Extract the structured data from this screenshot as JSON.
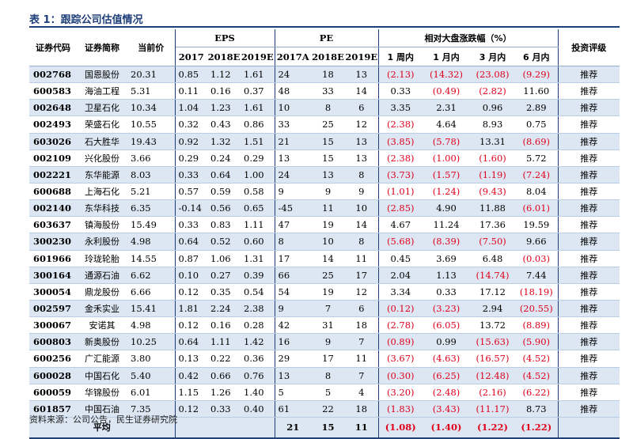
{
  "caption": "表 1：跟踪公司估值情况",
  "headers": {
    "code": "证券代码",
    "name": "证券简称",
    "price": "当前价",
    "eps_group": "EPS",
    "pe_group": "PE",
    "perf_group": "相对大盘涨跌幅（%）",
    "rating": "投资评级",
    "eps_years": [
      "2017",
      "2018E",
      "2019E"
    ],
    "pe_years": [
      "2017A",
      "2018E",
      "2019E"
    ],
    "perf_periods": [
      "1 周内",
      "1 月内",
      "3 月内",
      "6 月内"
    ]
  },
  "rows": [
    {
      "code": "002768",
      "name": "国恩股份",
      "price": "20.31",
      "eps": [
        "0.85",
        "1.12",
        "1.61"
      ],
      "pe": [
        "24",
        "18",
        "13"
      ],
      "perf": [
        "(2.13)",
        "(14.32)",
        "(23.08)",
        "(9.29)"
      ],
      "rating": "推荐"
    },
    {
      "code": "600583",
      "name": "海油工程",
      "price": "5.31",
      "eps": [
        "0.11",
        "0.16",
        "0.37"
      ],
      "pe": [
        "48",
        "33",
        "14"
      ],
      "perf": [
        "0.33",
        "(0.49)",
        "(2.82)",
        "11.60"
      ],
      "rating": "推荐"
    },
    {
      "code": "002648",
      "name": "卫星石化",
      "price": "10.34",
      "eps": [
        "1.04",
        "1.23",
        "1.61"
      ],
      "pe": [
        "10",
        "8",
        "6"
      ],
      "perf": [
        "3.35",
        "2.31",
        "0.96",
        "2.89"
      ],
      "rating": "推荐"
    },
    {
      "code": "002493",
      "name": "荣盛石化",
      "price": "10.55",
      "eps": [
        "0.32",
        "0.43",
        "0.86"
      ],
      "pe": [
        "33",
        "25",
        "12"
      ],
      "perf": [
        "(2.38)",
        "4.64",
        "8.93",
        "0.75"
      ],
      "rating": "推荐"
    },
    {
      "code": "603026",
      "name": "石大胜华",
      "price": "19.43",
      "eps": [
        "0.92",
        "1.32",
        "1.51"
      ],
      "pe": [
        "21",
        "15",
        "13"
      ],
      "perf": [
        "(3.85)",
        "(5.78)",
        "13.31",
        "(8.69)"
      ],
      "rating": "推荐"
    },
    {
      "code": "002109",
      "name": "兴化股份",
      "price": "3.66",
      "eps": [
        "0.29",
        "0.24",
        "0.29"
      ],
      "pe": [
        "13",
        "15",
        "13"
      ],
      "perf": [
        "(2.38)",
        "(1.00)",
        "(1.60)",
        "5.72"
      ],
      "rating": "推荐"
    },
    {
      "code": "002221",
      "name": "东华能源",
      "price": "8.03",
      "eps": [
        "0.33",
        "0.64",
        "1.00"
      ],
      "pe": [
        "24",
        "13",
        "8"
      ],
      "perf": [
        "(3.73)",
        "(1.57)",
        "(1.19)",
        "(7.24)"
      ],
      "rating": "推荐"
    },
    {
      "code": "600688",
      "name": "上海石化",
      "price": "5.21",
      "eps": [
        "0.57",
        "0.59",
        "0.58"
      ],
      "pe": [
        "9",
        "9",
        "9"
      ],
      "perf": [
        "(1.01)",
        "(1.24)",
        "(9.43)",
        "8.04"
      ],
      "rating": "推荐"
    },
    {
      "code": "002140",
      "name": "东华科技",
      "price": "6.35",
      "eps": [
        "-0.14",
        "0.56",
        "0.65"
      ],
      "pe": [
        "-45",
        "11",
        "10"
      ],
      "perf": [
        "(2.85)",
        "4.90",
        "11.88",
        "(6.01)"
      ],
      "rating": "推荐"
    },
    {
      "code": "603637",
      "name": "镇海股份",
      "price": "15.49",
      "eps": [
        "0.33",
        "0.83",
        "1.11"
      ],
      "pe": [
        "47",
        "19",
        "14"
      ],
      "perf": [
        "4.67",
        "11.24",
        "17.36",
        "19.59"
      ],
      "rating": "推荐"
    },
    {
      "code": "300230",
      "name": "永利股份",
      "price": "4.98",
      "eps": [
        "0.64",
        "0.52",
        "0.60"
      ],
      "pe": [
        "8",
        "10",
        "8"
      ],
      "perf": [
        "(5.68)",
        "(8.39)",
        "(7.50)",
        "9.66"
      ],
      "rating": "推荐"
    },
    {
      "code": "601966",
      "name": "玲珑轮胎",
      "price": "14.55",
      "eps": [
        "0.87",
        "1.06",
        "1.31"
      ],
      "pe": [
        "17",
        "14",
        "11"
      ],
      "perf": [
        "0.45",
        "3.69",
        "6.48",
        "(0.03)"
      ],
      "rating": "推荐"
    },
    {
      "code": "300164",
      "name": "通源石油",
      "price": "6.62",
      "eps": [
        "0.10",
        "0.27",
        "0.39"
      ],
      "pe": [
        "66",
        "25",
        "17"
      ],
      "perf": [
        "2.04",
        "1.13",
        "(14.74)",
        "7.44"
      ],
      "rating": "推荐"
    },
    {
      "code": "300054",
      "name": "鼎龙股份",
      "price": "6.66",
      "eps": [
        "0.12",
        "0.35",
        "0.54"
      ],
      "pe": [
        "54",
        "19",
        "12"
      ],
      "perf": [
        "3.34",
        "0.33",
        "17.12",
        "(18.19)"
      ],
      "rating": "推荐"
    },
    {
      "code": "002597",
      "name": "金禾实业",
      "price": "15.41",
      "eps": [
        "1.81",
        "2.24",
        "2.38"
      ],
      "pe": [
        "9",
        "7",
        "6"
      ],
      "perf": [
        "(0.12)",
        "(3.23)",
        "2.94",
        "(20.55)"
      ],
      "rating": "推荐"
    },
    {
      "code": "300067",
      "name": "安诺其",
      "price": "4.98",
      "eps": [
        "0.12",
        "0.16",
        "0.28"
      ],
      "pe": [
        "42",
        "31",
        "18"
      ],
      "perf": [
        "(2.78)",
        "(6.05)",
        "13.72",
        "(8.89)"
      ],
      "rating": "推荐"
    },
    {
      "code": "600803",
      "name": "新奥股份",
      "price": "10.25",
      "eps": [
        "0.64",
        "1.11",
        "1.42"
      ],
      "pe": [
        "16",
        "9",
        "7"
      ],
      "perf": [
        "(0.89)",
        "0.99",
        "(15.63)",
        "(5.90)"
      ],
      "rating": "推荐"
    },
    {
      "code": "600256",
      "name": "广汇能源",
      "price": "3.80",
      "eps": [
        "0.13",
        "0.22",
        "0.36"
      ],
      "pe": [
        "29",
        "17",
        "11"
      ],
      "perf": [
        "(3.67)",
        "(4.63)",
        "(16.57)",
        "(4.52)"
      ],
      "rating": "推荐"
    },
    {
      "code": "600028",
      "name": "中国石化",
      "price": "5.40",
      "eps": [
        "0.42",
        "0.66",
        "0.76"
      ],
      "pe": [
        "13",
        "8",
        "7"
      ],
      "perf": [
        "(0.30)",
        "(6.25)",
        "(12.48)",
        "(4.52)"
      ],
      "rating": "推荐"
    },
    {
      "code": "600059",
      "name": "华锦股份",
      "price": "6.01",
      "eps": [
        "1.15",
        "1.26",
        "1.40"
      ],
      "pe": [
        "5",
        "5",
        "4"
      ],
      "perf": [
        "(3.20)",
        "(2.48)",
        "(2.16)",
        "(6.22)"
      ],
      "rating": "推荐"
    },
    {
      "code": "601857",
      "name": "中国石油",
      "price": "7.35",
      "eps": [
        "0.12",
        "0.33",
        "0.40"
      ],
      "pe": [
        "61",
        "22",
        "18"
      ],
      "perf": [
        "(1.83)",
        "(3.43)",
        "(11.17)",
        "8.73"
      ],
      "rating": "推荐"
    }
  ],
  "average": {
    "label": "平均",
    "pe": [
      "21",
      "15",
      "11"
    ],
    "perf": [
      "(1.08)",
      "(1.40)",
      "(1.22)",
      "(1.22)"
    ]
  },
  "source": "资料来源：公司公告，民生证券研究院"
}
